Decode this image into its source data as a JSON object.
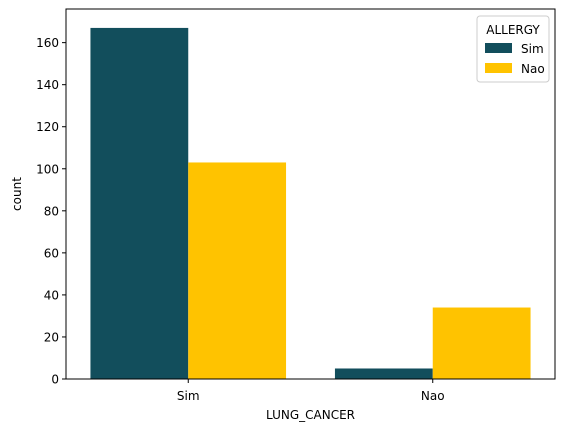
{
  "chart_data": {
    "type": "bar",
    "categories": [
      "Sim",
      "Nao"
    ],
    "series": [
      {
        "name": "Sim",
        "values": [
          167,
          5
        ],
        "color": "#124e5c"
      },
      {
        "name": "Nao",
        "values": [
          103,
          34
        ],
        "color": "#ffc300"
      }
    ],
    "xlabel": "LUNG_CANCER",
    "ylabel": "count",
    "ylim": [
      0,
      176
    ],
    "yticks": [
      0,
      20,
      40,
      60,
      80,
      100,
      120,
      140,
      160
    ],
    "legend": {
      "title": "ALLERGY",
      "placement": "top-right"
    },
    "grid": false
  }
}
